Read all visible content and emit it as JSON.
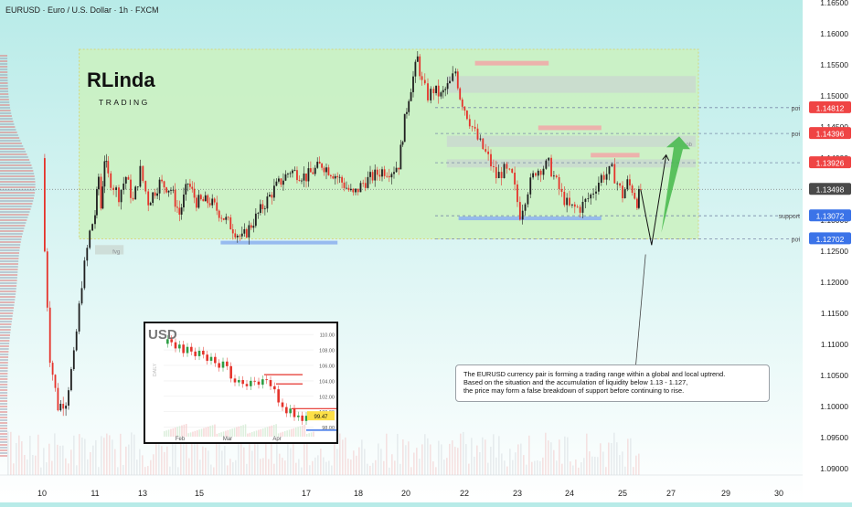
{
  "header": {
    "title": "EURUSD · Euro / U.S. Dollar · 1h · FXCM"
  },
  "logo": {
    "initials": "RLinda",
    "word": "TRADING"
  },
  "colors": {
    "bg_top": "#b8ebe8",
    "bg_bottom": "#ffffff",
    "range_box": "#ccf2c0",
    "up": "#1f1f1f",
    "down": "#e5332b",
    "poi": "#ef4444",
    "current": "#4a4a4a",
    "support": "#3b73e8",
    "arrow": "#44b84a"
  },
  "chart_data": {
    "type": "candlestick",
    "symbol": "EURUSD",
    "timeframe": "1h",
    "ylim": [
      1.089,
      1.165
    ],
    "y_ticks": [
      "1.16500",
      "1.16000",
      "1.15500",
      "1.15000",
      "1.14500",
      "1.14000",
      "1.13500",
      "1.13000",
      "1.12500",
      "1.12000",
      "1.11500",
      "1.11000",
      "1.10500",
      "1.10000",
      "1.09500",
      "1.09000"
    ],
    "x_ticks": [
      "10",
      "11",
      "13",
      "15",
      "17",
      "18",
      "20",
      "22",
      "23",
      "24",
      "25",
      "27",
      "29",
      "30"
    ],
    "price_path": [
      [
        10.0,
        1.14
      ],
      [
        10.05,
        1.125
      ],
      [
        10.15,
        1.108
      ],
      [
        10.3,
        1.1
      ],
      [
        10.45,
        1.101
      ],
      [
        10.6,
        1.108
      ],
      [
        10.75,
        1.12
      ],
      [
        10.9,
        1.128
      ],
      [
        11.0,
        1.131
      ],
      [
        11.15,
        1.137
      ],
      [
        11.25,
        1.132
      ],
      [
        11.4,
        1.14
      ],
      [
        11.55,
        1.137
      ],
      [
        12.0,
        1.134
      ],
      [
        12.3,
        1.137
      ],
      [
        12.6,
        1.133
      ],
      [
        12.9,
        1.138
      ],
      [
        13.2,
        1.133
      ],
      [
        13.6,
        1.136
      ],
      [
        14.0,
        1.135
      ],
      [
        14.3,
        1.131
      ],
      [
        14.6,
        1.136
      ],
      [
        14.9,
        1.133
      ],
      [
        15.2,
        1.133
      ],
      [
        15.5,
        1.13
      ],
      [
        15.8,
        1.127
      ],
      [
        16.1,
        1.131
      ],
      [
        16.4,
        1.135
      ],
      [
        16.7,
        1.138
      ],
      [
        17.0,
        1.137
      ],
      [
        17.3,
        1.139
      ],
      [
        17.6,
        1.137
      ],
      [
        17.9,
        1.134
      ],
      [
        18.2,
        1.136
      ],
      [
        18.6,
        1.137
      ],
      [
        19.0,
        1.138
      ],
      [
        19.4,
        1.138
      ],
      [
        19.7,
        1.139
      ],
      [
        19.95,
        1.146
      ],
      [
        20.1,
        1.15
      ],
      [
        20.25,
        1.153
      ],
      [
        20.4,
        1.156
      ],
      [
        20.55,
        1.152
      ],
      [
        20.75,
        1.15
      ],
      [
        20.95,
        1.151
      ],
      [
        21.2,
        1.15
      ],
      [
        21.5,
        1.152
      ],
      [
        21.7,
        1.154
      ],
      [
        21.85,
        1.15
      ],
      [
        22.05,
        1.147
      ],
      [
        22.25,
        1.143
      ],
      [
        22.45,
        1.14
      ],
      [
        22.6,
        1.137
      ],
      [
        22.75,
        1.138
      ],
      [
        22.9,
        1.137
      ],
      [
        23.05,
        1.131
      ],
      [
        23.2,
        1.135
      ],
      [
        23.35,
        1.138
      ],
      [
        23.6,
        1.139
      ],
      [
        23.85,
        1.134
      ],
      [
        24.0,
        1.132
      ],
      [
        24.2,
        1.132
      ],
      [
        24.4,
        1.134
      ],
      [
        24.6,
        1.137
      ],
      [
        24.8,
        1.138
      ],
      [
        25.0,
        1.134
      ],
      [
        25.2,
        1.136
      ],
      [
        25.4,
        1.135
      ],
      [
        25.6,
        1.133
      ],
      [
        25.75,
        1.135
      ]
    ],
    "projection_line": [
      [
        25.75,
        1.1349
      ],
      [
        26.2,
        1.126
      ],
      [
        26.8,
        1.1405
      ]
    ],
    "projection_arrow": [
      [
        26.6,
        1.128
      ],
      [
        27.3,
        1.1435
      ]
    ],
    "range_box": {
      "x": [
        10.7,
        28.0
      ],
      "y": [
        1.127,
        1.1575
      ]
    },
    "current_price": 1.13498,
    "levels": [
      {
        "price": 1.14812,
        "badge": "1.14812",
        "label": "poi"
      },
      {
        "price": 1.14396,
        "badge": "1.14396",
        "label": "poi"
      },
      {
        "price": 1.13926,
        "badge": "1.13926",
        "label": ""
      },
      {
        "price": 1.13072,
        "badge": "1.13072",
        "label": "support"
      },
      {
        "price": 1.12702,
        "badge": "1.12702",
        "label": "poi"
      }
    ],
    "zones": [
      {
        "label": "",
        "x": [
          21.4,
          27.9
        ],
        "y": [
          1.1505,
          1.1532
        ]
      },
      {
        "label": "ob",
        "x": [
          21.4,
          27.9
        ],
        "y": [
          1.1418,
          1.1436
        ]
      },
      {
        "label": "",
        "x": [
          21.4,
          27.9
        ],
        "y": [
          1.1385,
          1.1398
        ]
      },
      {
        "label": "fvg",
        "x": [
          11.0,
          12.2
        ],
        "y": [
          1.1245,
          1.126
        ]
      }
    ],
    "zone_extra_labels": [
      "ob",
      "fvg"
    ],
    "support_lines": [
      {
        "x": [
          15.4,
          17.6
        ],
        "price": 1.1264
      },
      {
        "x": [
          21.8,
          24.6
        ],
        "price": 1.1303
      }
    ]
  },
  "annotation": {
    "lines": [
      "The EURUSD currency pair is forming a trading range within a global and local uptrend.",
      "Based on the situation and the accumulation of liquidity below 1.13 - 1.127,",
      "the price may form a false breakdown of support before continuing to rise."
    ]
  },
  "inset": {
    "title": "USD",
    "side_label": "DAILY",
    "price_badge": "99.47",
    "y_ticks": [
      "110.00",
      "108.00",
      "106.00",
      "104.00",
      "102.00",
      "100.00",
      "98.00"
    ],
    "x_ticks": [
      "Feb",
      "Mar",
      "Apr"
    ],
    "ylim": [
      97,
      110.5
    ],
    "series": [
      108.8,
      109.4,
      109.0,
      108.2,
      108.7,
      107.6,
      108.4,
      107.8,
      107.2,
      107.9,
      107.4,
      106.6,
      107.1,
      106.3,
      105.7,
      106.5,
      105.9,
      104.3,
      103.8,
      104.1,
      103.6,
      103.3,
      104.0,
      103.9,
      103.5,
      104.2,
      104.1,
      103.3,
      102.9,
      101.2,
      100.6,
      99.8,
      100.4,
      99.3,
      99.5,
      98.8,
      99.47
    ]
  }
}
